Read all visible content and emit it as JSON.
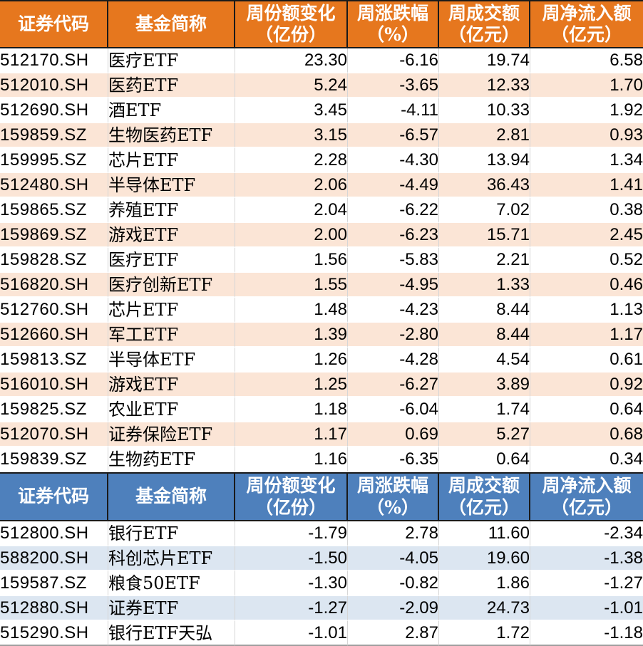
{
  "table": {
    "columns": [
      "证券代码",
      "基金简称",
      "周份额变化\n（亿份）",
      "周涨跌幅\n（%）",
      "周成交额\n（亿元）",
      "周净流入额\n（亿元）"
    ],
    "colors": {
      "inflow_header": "#E6771E",
      "inflow_alt_row": "#FBE5D6",
      "outflow_header": "#4E80BC",
      "outflow_alt_row": "#DCE6F1",
      "header_text": "#FFFFFF",
      "body_text": "#000000",
      "divider": "#D6D6D6",
      "dark_border": "#1A1A1A"
    },
    "sections": [
      {
        "id": "inflow",
        "header_bg": "#E6771E",
        "row_alt_bg": "#FBE5D6",
        "headers": [
          "证券代码",
          "基金简称",
          "周份额变化\n（亿份）",
          "周涨跌幅\n（%）",
          "周成交额\n（亿元）",
          "周净流入额\n（亿元）"
        ],
        "rows": [
          [
            "512170.SH",
            "医疗ETF",
            "23.30",
            "-6.16",
            "19.74",
            "6.58"
          ],
          [
            "512010.SH",
            "医药ETF",
            "5.24",
            "-3.65",
            "12.33",
            "1.70"
          ],
          [
            "512690.SH",
            "酒ETF",
            "3.45",
            "-4.11",
            "10.33",
            "1.92"
          ],
          [
            "159859.SZ",
            "生物医药ETF",
            "3.15",
            "-6.57",
            "2.81",
            "0.93"
          ],
          [
            "159995.SZ",
            "芯片ETF",
            "2.28",
            "-4.30",
            "13.94",
            "1.34"
          ],
          [
            "512480.SH",
            "半导体ETF",
            "2.06",
            "-4.49",
            "36.43",
            "1.41"
          ],
          [
            "159865.SZ",
            "养殖ETF",
            "2.04",
            "-6.22",
            "7.02",
            "0.38"
          ],
          [
            "159869.SZ",
            "游戏ETF",
            "2.00",
            "-6.23",
            "15.71",
            "2.45"
          ],
          [
            "159828.SZ",
            "医疗ETF",
            "1.56",
            "-5.83",
            "2.21",
            "0.52"
          ],
          [
            "516820.SH",
            "医疗创新ETF",
            "1.55",
            "-4.95",
            "1.33",
            "0.46"
          ],
          [
            "512760.SH",
            "芯片ETF",
            "1.48",
            "-4.23",
            "8.44",
            "1.13"
          ],
          [
            "512660.SH",
            "军工ETF",
            "1.39",
            "-2.80",
            "8.44",
            "1.17"
          ],
          [
            "159813.SZ",
            "半导体ETF",
            "1.26",
            "-4.28",
            "4.54",
            "0.61"
          ],
          [
            "516010.SH",
            "游戏ETF",
            "1.25",
            "-6.27",
            "3.89",
            "0.92"
          ],
          [
            "159825.SZ",
            "农业ETF",
            "1.18",
            "-6.04",
            "1.74",
            "0.64"
          ],
          [
            "512070.SH",
            "证券保险ETF",
            "1.17",
            "0.69",
            "5.27",
            "0.68"
          ],
          [
            "159839.SZ",
            "生物药ETF",
            "1.16",
            "-6.35",
            "0.64",
            "0.34"
          ]
        ]
      },
      {
        "id": "outflow",
        "header_bg": "#4E80BC",
        "row_alt_bg": "#DCE6F1",
        "headers": [
          "证券代码",
          "基金简称",
          "周份额变化\n（亿份）",
          "周涨跌幅\n（%）",
          "周成交额\n（亿元）",
          "周净流入额\n（亿元）"
        ],
        "rows": [
          [
            "512800.SH",
            "银行ETF",
            "-1.79",
            "2.78",
            "11.60",
            "-2.34"
          ],
          [
            "588200.SH",
            "科创芯片ETF",
            "-1.50",
            "-4.05",
            "19.60",
            "-1.38"
          ],
          [
            "159587.SZ",
            "粮食50ETF",
            "-1.30",
            "-0.82",
            "1.86",
            "-1.27"
          ],
          [
            "512880.SH",
            "证券ETF",
            "-1.27",
            "-2.09",
            "24.73",
            "-1.01"
          ],
          [
            "515290.SH",
            "银行ETF天弘",
            "-1.01",
            "2.87",
            "1.72",
            "-1.18"
          ]
        ]
      }
    ]
  }
}
